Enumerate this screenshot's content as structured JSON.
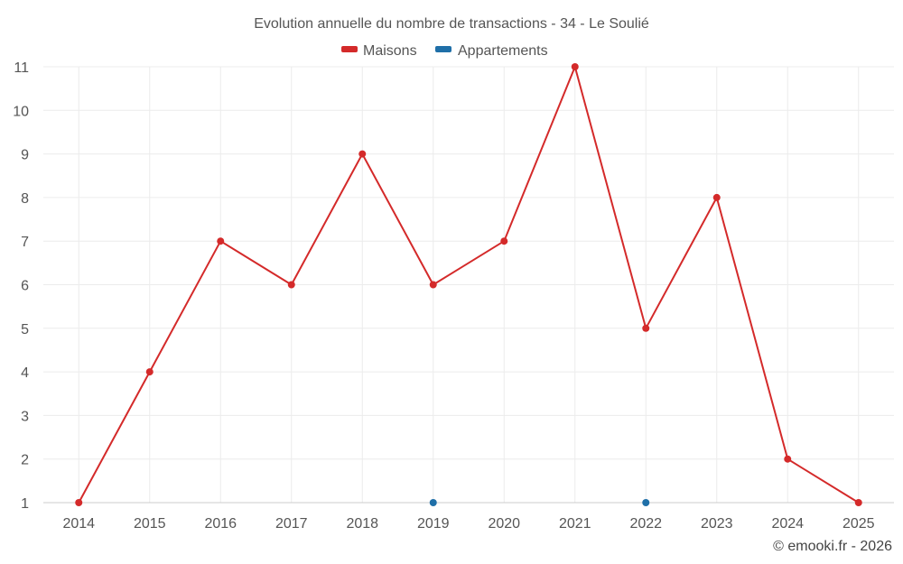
{
  "chart_data": {
    "type": "line",
    "title": "Evolution annuelle du nombre de transactions - 34 - Le Soulié",
    "categories": [
      "2014",
      "2015",
      "2016",
      "2017",
      "2018",
      "2019",
      "2020",
      "2021",
      "2022",
      "2023",
      "2024",
      "2025"
    ],
    "ylim": [
      1,
      11
    ],
    "yticks": [
      "1",
      "2",
      "3",
      "4",
      "5",
      "6",
      "7",
      "8",
      "9",
      "10",
      "11"
    ],
    "grid": true,
    "legend_position": "top-center",
    "series": [
      {
        "name": "Maisons",
        "color": "#d42a2a",
        "values": [
          1,
          4,
          7,
          6,
          9,
          6,
          7,
          11,
          5,
          8,
          2,
          1
        ]
      },
      {
        "name": "Appartements",
        "color": "#1f6fa8",
        "values": [
          null,
          null,
          null,
          null,
          null,
          1,
          null,
          null,
          1,
          null,
          null,
          null
        ]
      }
    ]
  },
  "credit": "© emooki.fr - 2026"
}
